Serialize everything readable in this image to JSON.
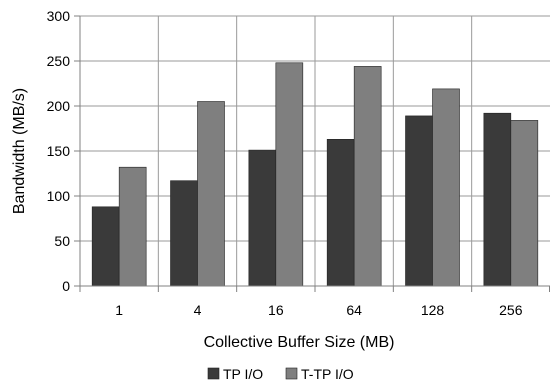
{
  "chart_data": {
    "type": "bar",
    "categories": [
      "1",
      "4",
      "16",
      "64",
      "128",
      "256"
    ],
    "series": [
      {
        "name": "TP I/O",
        "values": [
          88,
          117,
          151,
          163,
          189,
          192
        ],
        "color": "#3a3a3a"
      },
      {
        "name": "T-TP I/O",
        "values": [
          132,
          205,
          248,
          244,
          219,
          184
        ],
        "color": "#7f7f7f"
      }
    ],
    "xlabel": "Collective Buffer Size (MB)",
    "ylabel": "Bandwidth (MB/s)",
    "ylim": [
      0,
      300
    ],
    "yticks": [
      0,
      50,
      100,
      150,
      200,
      250,
      300
    ],
    "grid": true,
    "legend_position": "bottom"
  }
}
